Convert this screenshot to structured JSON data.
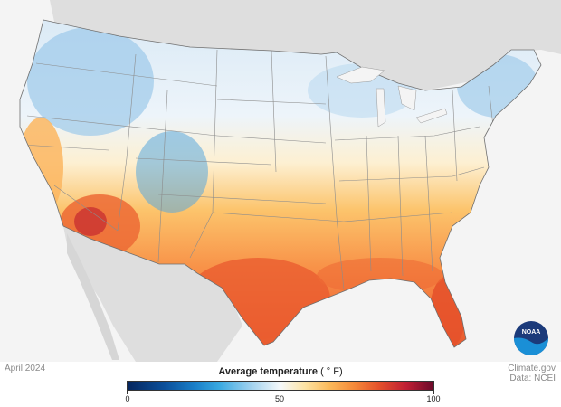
{
  "map": {
    "date": "April 2024",
    "legend_title": "Average temperature",
    "legend_unit": "( ° F)",
    "legend_ticks": [
      "0",
      "50",
      "100"
    ],
    "credit_line1": "Climate.gov",
    "credit_line2": "Data: NCEI",
    "logo_text": "NOAA",
    "colors": {
      "cold": "#1a7fc8",
      "neutral": "#f5f9fb",
      "warm": "#fbb95a",
      "hot": "#e5522b",
      "land_background": "#dedede",
      "ocean": "#f4f4f4"
    }
  }
}
